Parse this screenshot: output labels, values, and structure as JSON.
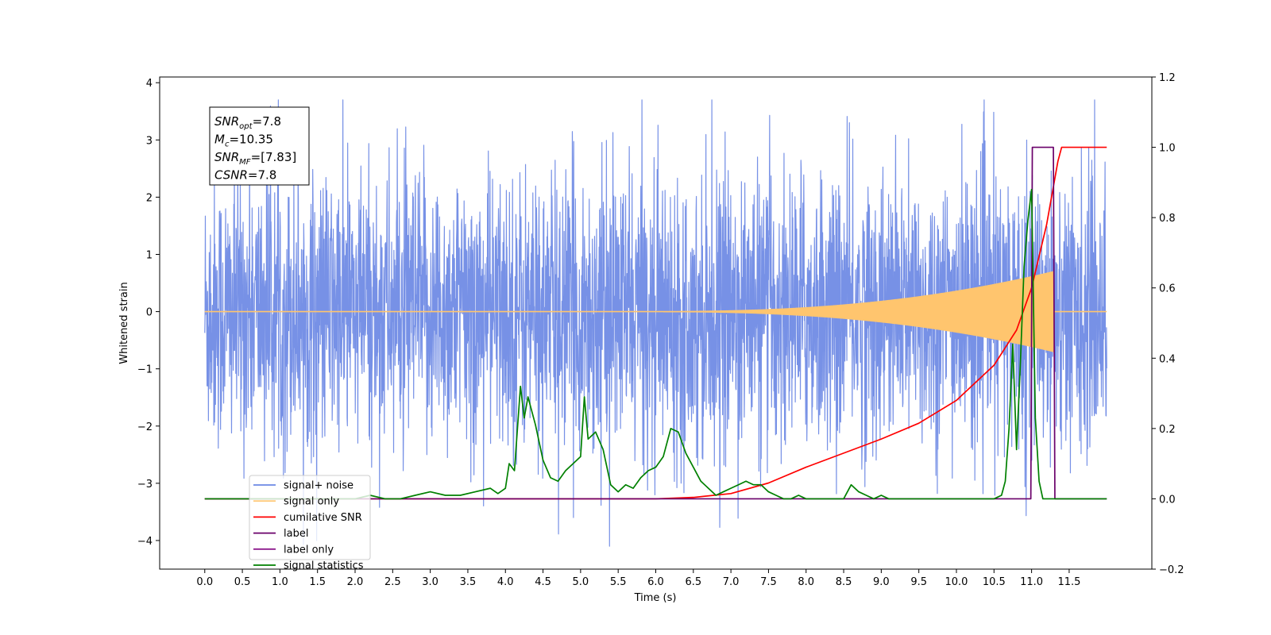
{
  "chart_data": {
    "type": "line",
    "xlabel": "Time (s)",
    "ylabel": "Whitened strain",
    "xlim": [
      -0.6,
      12.6
    ],
    "ylim_left": [
      -4.5,
      4.1
    ],
    "ylim_right": [
      -0.2,
      1.2
    ],
    "x_ticks": [
      0.0,
      0.5,
      1.0,
      1.5,
      2.0,
      2.5,
      3.0,
      3.5,
      4.0,
      4.5,
      5.0,
      5.5,
      6.0,
      6.5,
      7.0,
      7.5,
      8.0,
      8.5,
      9.0,
      9.5,
      10.0,
      10.5,
      11.0,
      11.5
    ],
    "x_tick_labels": [
      "0.0",
      "0.5",
      "1.0",
      "1.5",
      "2.0",
      "2.5",
      "3.0",
      "3.5",
      "4.0",
      "4.5",
      "5.0",
      "5.5",
      "6.0",
      "6.5",
      "7.0",
      "7.5",
      "8.0",
      "8.5",
      "9.0",
      "9.5",
      "10.0",
      "10.5",
      "11.0",
      "11.5"
    ],
    "y_ticks_left": [
      -4,
      -3,
      -2,
      -1,
      0,
      1,
      2,
      3,
      4
    ],
    "y_tick_labels_left": [
      "−4",
      "−3",
      "−2",
      "−1",
      "0",
      "1",
      "2",
      "3",
      "4"
    ],
    "y_ticks_right": [
      -0.2,
      0.0,
      0.2,
      0.4,
      0.6,
      0.8,
      1.0,
      1.2
    ],
    "y_tick_labels_right": [
      "−0.2",
      "0.0",
      "0.2",
      "0.4",
      "0.6",
      "0.8",
      "1.0",
      "1.2"
    ],
    "series": [
      {
        "name": "signal+ noise",
        "axis": "left",
        "color": "#6b88e4",
        "x_range": [
          0.0,
          12.0
        ],
        "approx_amplitude": 1.2,
        "peak_extremes": [
          3.7,
          -4.1
        ]
      },
      {
        "name": "signal only",
        "axis": "left",
        "color": "#ffc56e",
        "x_range": [
          0.0,
          12.0
        ],
        "envelope_peak": 0.7,
        "envelope_peak_time": 11.3
      },
      {
        "name": "cumilative SNR",
        "axis": "right",
        "color": "#ff0000",
        "x": [
          0.0,
          6.0,
          6.5,
          7.0,
          7.5,
          8.0,
          8.5,
          9.0,
          9.5,
          10.0,
          10.5,
          10.8,
          11.0,
          11.2,
          11.35,
          11.4,
          11.5,
          12.0
        ],
        "y": [
          0.0,
          0.0,
          0.004,
          0.015,
          0.045,
          0.09,
          0.13,
          0.17,
          0.215,
          0.28,
          0.38,
          0.48,
          0.6,
          0.78,
          0.96,
          1.0,
          1.0,
          1.0
        ]
      },
      {
        "name": "label",
        "axis": "right",
        "color": "#6a006a",
        "x": [
          0.0,
          10.99,
          11.01,
          11.29,
          11.31,
          12.0
        ],
        "y": [
          0.0,
          0.0,
          1.0,
          1.0,
          0.0,
          0.0
        ]
      },
      {
        "name": "label only",
        "axis": "right",
        "color": "#800080",
        "hidden": true
      },
      {
        "name": "signal statistics",
        "axis": "right",
        "color": "#008000",
        "x": [
          0.0,
          2.0,
          2.2,
          2.4,
          2.6,
          2.8,
          3.0,
          3.2,
          3.4,
          3.6,
          3.8,
          3.9,
          4.0,
          4.05,
          4.12,
          4.2,
          4.25,
          4.3,
          4.4,
          4.5,
          4.6,
          4.7,
          4.8,
          4.9,
          5.0,
          5.05,
          5.1,
          5.2,
          5.3,
          5.4,
          5.5,
          5.6,
          5.7,
          5.8,
          5.9,
          6.0,
          6.1,
          6.2,
          6.3,
          6.4,
          6.5,
          6.6,
          6.7,
          6.8,
          6.9,
          7.0,
          7.1,
          7.2,
          7.3,
          7.4,
          7.5,
          7.6,
          7.7,
          7.8,
          7.9,
          8.0,
          8.5,
          8.6,
          8.7,
          8.8,
          8.9,
          9.0,
          9.1,
          9.2,
          9.5,
          10.0,
          10.5,
          10.6,
          10.65,
          10.7,
          10.75,
          10.8,
          10.85,
          10.9,
          10.95,
          11.0,
          11.05,
          11.1,
          11.15,
          11.3,
          12.0
        ],
        "y": [
          0.0,
          0.0,
          0.01,
          0.0,
          0.0,
          0.01,
          0.02,
          0.01,
          0.01,
          0.02,
          0.03,
          0.015,
          0.03,
          0.1,
          0.08,
          0.32,
          0.23,
          0.29,
          0.21,
          0.11,
          0.06,
          0.05,
          0.08,
          0.1,
          0.12,
          0.29,
          0.17,
          0.19,
          0.14,
          0.04,
          0.02,
          0.04,
          0.03,
          0.06,
          0.08,
          0.09,
          0.12,
          0.2,
          0.19,
          0.13,
          0.09,
          0.05,
          0.03,
          0.01,
          0.02,
          0.03,
          0.04,
          0.05,
          0.04,
          0.04,
          0.02,
          0.01,
          0.0,
          0.0,
          0.01,
          0.0,
          0.0,
          0.04,
          0.02,
          0.01,
          0.0,
          0.01,
          0.0,
          0.0,
          0.0,
          0.0,
          0.0,
          0.01,
          0.05,
          0.2,
          0.44,
          0.14,
          0.38,
          0.66,
          0.79,
          0.88,
          0.23,
          0.05,
          0.0,
          0.0,
          0.0
        ]
      }
    ],
    "legend": {
      "placement": "lower-left"
    },
    "annotation": {
      "lines": [
        {
          "base": "SNR",
          "sub": "opt",
          "value": "=7.8"
        },
        {
          "base": "M",
          "sub": "c",
          "value": "=10.35"
        },
        {
          "base": "SNR",
          "sub": "MF",
          "value": "=[7.83]"
        },
        {
          "base": "CSNR",
          "sub": "",
          "value": "=7.8"
        }
      ]
    }
  }
}
